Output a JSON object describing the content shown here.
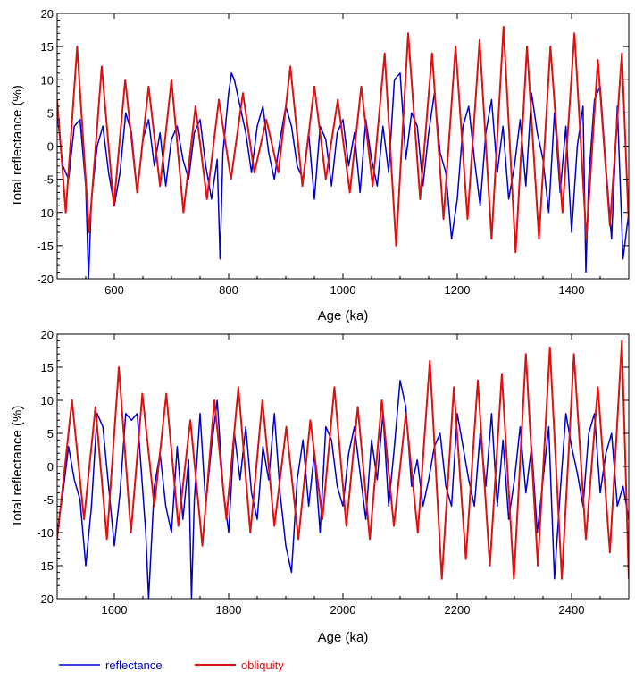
{
  "chart_data": [
    {
      "type": "line",
      "title": "",
      "xlabel": "Age (ka)",
      "ylabel": "Total reflectance (%)",
      "xlim": [
        500,
        1500
      ],
      "ylim": [
        -20,
        20
      ],
      "xticks": [
        600,
        800,
        1000,
        1200,
        1400
      ],
      "xtick_labels": [
        "600",
        "800",
        "1000",
        "1200",
        "1400"
      ],
      "yticks": [
        -20,
        -15,
        -10,
        -5,
        0,
        5,
        10,
        15,
        20
      ],
      "ytick_labels": [
        "-20",
        "-15",
        "-10",
        "-5",
        "0",
        "5",
        "10",
        "15",
        "20"
      ],
      "grid": false,
      "series": [
        {
          "name": "reflectance",
          "color": "#0000cc",
          "x": [
            500,
            510,
            520,
            530,
            540,
            550,
            555,
            560,
            570,
            580,
            590,
            600,
            610,
            620,
            630,
            640,
            650,
            660,
            670,
            680,
            690,
            700,
            710,
            720,
            730,
            740,
            750,
            760,
            770,
            780,
            785,
            790,
            800,
            805,
            810,
            820,
            830,
            840,
            850,
            860,
            870,
            880,
            890,
            900,
            910,
            920,
            930,
            940,
            950,
            960,
            970,
            980,
            990,
            1000,
            1010,
            1020,
            1030,
            1040,
            1050,
            1060,
            1070,
            1080,
            1090,
            1100,
            1110,
            1120,
            1130,
            1140,
            1150,
            1160,
            1170,
            1180,
            1190,
            1200,
            1210,
            1220,
            1230,
            1240,
            1250,
            1260,
            1270,
            1280,
            1290,
            1300,
            1310,
            1320,
            1330,
            1340,
            1350,
            1360,
            1370,
            1380,
            1390,
            1400,
            1410,
            1420,
            1425,
            1430,
            1440,
            1450,
            1460,
            1470,
            1480,
            1490,
            1500
          ],
          "y": [
            5,
            -3,
            -5,
            3,
            4,
            -6,
            -20,
            -8,
            0,
            3,
            -4,
            -9,
            -4,
            5,
            2,
            -7,
            1,
            4,
            -3,
            2,
            -6,
            1,
            3,
            -2,
            -5,
            2,
            4,
            -3,
            -8,
            -2,
            -17,
            -1,
            8,
            11,
            10,
            6,
            2,
            -4,
            3,
            6,
            -1,
            -5,
            1,
            6,
            3,
            -3,
            -5,
            2,
            -8,
            3,
            1,
            -6,
            2,
            4,
            -3,
            2,
            -7,
            4,
            -2,
            -6,
            3,
            -4,
            10,
            11,
            -2,
            5,
            3,
            -6,
            2,
            8,
            -1,
            -4,
            -14,
            -8,
            3,
            6,
            -2,
            -9,
            2,
            7,
            -4,
            3,
            -8,
            -3,
            4,
            -6,
            8,
            2,
            -2,
            -10,
            5,
            -7,
            3,
            -13,
            0,
            6,
            -19,
            -5,
            7,
            9,
            -3,
            -14,
            6,
            -17,
            -10
          ],
          "stroke_width": 1.5
        },
        {
          "name": "obliquity",
          "color": "#dd1111",
          "x": [
            500,
            515,
            535,
            556,
            578,
            599,
            619,
            640,
            660,
            680,
            700,
            721,
            742,
            762,
            783,
            804,
            825,
            845,
            866,
            887,
            908,
            929,
            950,
            970,
            991,
            1012,
            1032,
            1052,
            1073,
            1093,
            1114,
            1135,
            1156,
            1176,
            1197,
            1218,
            1239,
            1260,
            1281,
            1302,
            1322,
            1343,
            1363,
            1384,
            1405,
            1426,
            1446,
            1467,
            1488,
            1500
          ],
          "y": [
            7,
            -10,
            15,
            -13,
            12,
            -9,
            10,
            -7,
            9,
            -6,
            10,
            -10,
            6,
            -8,
            7,
            -5,
            8,
            -4,
            4,
            -4,
            12,
            -6,
            9,
            -5,
            7,
            -7,
            9,
            -6,
            14,
            -15,
            17,
            -8,
            14,
            -11,
            15,
            -11,
            16,
            -14,
            18,
            -16,
            15,
            -14,
            15,
            -10,
            17,
            -14,
            13,
            -12,
            14,
            -12
          ],
          "stroke_width": 2
        }
      ]
    },
    {
      "type": "line",
      "title": "",
      "xlabel": "Age (ka)",
      "ylabel": "Total reflectance (%)",
      "xlim": [
        1500,
        2500
      ],
      "ylim": [
        -20,
        20
      ],
      "xticks": [
        1600,
        1800,
        2000,
        2200,
        2400
      ],
      "xtick_labels": [
        "1600",
        "1800",
        "2000",
        "2200",
        "2400"
      ],
      "yticks": [
        -20,
        -15,
        -10,
        -5,
        0,
        5,
        10,
        15,
        20
      ],
      "ytick_labels": [
        "-20",
        "-15",
        "-10",
        "-5",
        "0",
        "5",
        "10",
        "15",
        "20"
      ],
      "grid": false,
      "series": [
        {
          "name": "reflectance",
          "color": "#0000cc",
          "x": [
            1500,
            1510,
            1520,
            1530,
            1540,
            1550,
            1560,
            1570,
            1580,
            1590,
            1600,
            1610,
            1620,
            1630,
            1640,
            1650,
            1655,
            1660,
            1670,
            1680,
            1690,
            1700,
            1710,
            1720,
            1730,
            1735,
            1740,
            1750,
            1760,
            1770,
            1780,
            1790,
            1800,
            1810,
            1820,
            1830,
            1840,
            1850,
            1860,
            1870,
            1880,
            1890,
            1900,
            1910,
            1920,
            1930,
            1940,
            1950,
            1960,
            1970,
            1980,
            1990,
            2000,
            2010,
            2020,
            2030,
            2040,
            2050,
            2060,
            2070,
            2080,
            2090,
            2100,
            2110,
            2120,
            2130,
            2140,
            2150,
            2160,
            2170,
            2180,
            2190,
            2200,
            2210,
            2220,
            2230,
            2240,
            2250,
            2260,
            2270,
            2280,
            2290,
            2300,
            2310,
            2320,
            2330,
            2340,
            2350,
            2360,
            2370,
            2380,
            2390,
            2400,
            2410,
            2420,
            2430,
            2440,
            2450,
            2460,
            2470,
            2480,
            2490,
            2500
          ],
          "y": [
            -10,
            -4,
            3,
            -2,
            -5,
            -15,
            -6,
            8,
            6,
            -3,
            -12,
            -4,
            8,
            7,
            8,
            -4,
            -10,
            -20,
            -3,
            2,
            -6,
            -10,
            3,
            -8,
            1,
            -20,
            -5,
            8,
            -6,
            3,
            10,
            -3,
            -10,
            5,
            -2,
            6,
            -4,
            -8,
            3,
            -2,
            8,
            -4,
            -12,
            -16,
            -2,
            4,
            -6,
            2,
            -10,
            6,
            4,
            -3,
            -6,
            2,
            6,
            -1,
            -8,
            4,
            -2,
            8,
            -6,
            3,
            13,
            9,
            -3,
            1,
            -6,
            -2,
            3,
            5,
            -3,
            -6,
            8,
            3,
            -2,
            -6,
            5,
            -3,
            8,
            -6,
            4,
            -8,
            -2,
            6,
            -4,
            3,
            -10,
            -2,
            6,
            -17,
            -4,
            8,
            3,
            -1,
            -6,
            5,
            8,
            -4,
            2,
            5,
            -6,
            -3,
            -8
          ],
          "stroke_width": 1.5
        },
        {
          "name": "obliquity",
          "color": "#dd1111",
          "x": [
            1500,
            1526,
            1547,
            1567,
            1587,
            1608,
            1629,
            1649,
            1670,
            1691,
            1712,
            1733,
            1754,
            1775,
            1796,
            1817,
            1838,
            1859,
            1880,
            1901,
            1922,
            1943,
            1964,
            1985,
            2006,
            2026,
            2047,
            2068,
            2089,
            2110,
            2131,
            2152,
            2173,
            2194,
            2215,
            2236,
            2257,
            2278,
            2299,
            2320,
            2341,
            2362,
            2383,
            2404,
            2425,
            2446,
            2467,
            2488,
            2500
          ],
          "y": [
            -11,
            10,
            -8,
            9,
            -11,
            15,
            -10,
            11,
            -6,
            11,
            -9,
            7,
            -12,
            10,
            -8,
            12,
            -10,
            10,
            -9,
            6,
            -11,
            7,
            -8,
            12,
            -9,
            9,
            -11,
            10,
            -9,
            8,
            -10,
            16,
            -17,
            12,
            -14,
            13,
            -15,
            14,
            -17,
            17,
            -15,
            18,
            -17,
            17,
            -11,
            12,
            -13,
            19,
            -17
          ],
          "stroke_width": 2
        }
      ]
    }
  ],
  "legend": {
    "placement": "bottom-left",
    "entries": [
      {
        "label": "reflectance",
        "color": "#0000cc"
      },
      {
        "label": "obliquity",
        "color": "#dd1111"
      }
    ]
  }
}
